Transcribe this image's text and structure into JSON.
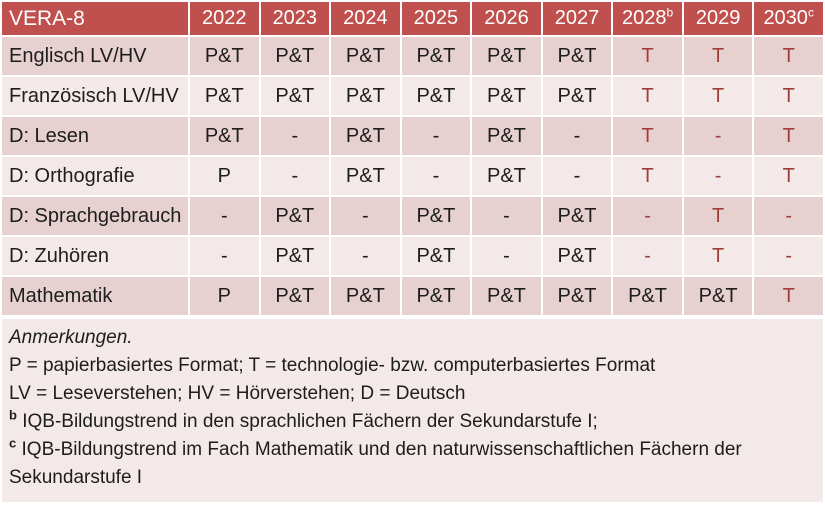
{
  "colors": {
    "header_bg": "#C0504D",
    "header_text": "#FFFFFF",
    "row_dark_bg": "#E7D1D0",
    "row_light_bg": "#F3E9E8",
    "notes_bg": "#F3E9E8",
    "body_text": "#1D1D1D",
    "tech_red_text": "#A03E3B",
    "grid_lines": "#FFFFFF"
  },
  "table": {
    "title": "VERA-8",
    "years": [
      {
        "label": "2022",
        "sup": ""
      },
      {
        "label": "2023",
        "sup": ""
      },
      {
        "label": "2024",
        "sup": ""
      },
      {
        "label": "2025",
        "sup": ""
      },
      {
        "label": "2026",
        "sup": ""
      },
      {
        "label": "2027",
        "sup": ""
      },
      {
        "label": "2028",
        "sup": "b"
      },
      {
        "label": "2029",
        "sup": ""
      },
      {
        "label": "2030",
        "sup": "c"
      }
    ],
    "rows": [
      {
        "label": "Englisch LV/HV",
        "cells": [
          "P&T",
          "P&T",
          "P&T",
          "P&T",
          "P&T",
          "P&T",
          "T",
          "T",
          "T"
        ]
      },
      {
        "label": "Französisch LV/HV",
        "cells": [
          "P&T",
          "P&T",
          "P&T",
          "P&T",
          "P&T",
          "P&T",
          "T",
          "T",
          "T"
        ]
      },
      {
        "label": "D: Lesen",
        "cells": [
          "P&T",
          "-",
          "P&T",
          "-",
          "P&T",
          "-",
          "T",
          "-",
          "T"
        ]
      },
      {
        "label": "D: Orthografie",
        "cells": [
          "P",
          "-",
          "P&T",
          "-",
          "P&T",
          "-",
          "T",
          "-",
          "T"
        ]
      },
      {
        "label": "D: Sprachgebrauch",
        "cells": [
          "-",
          "P&T",
          "-",
          "P&T",
          "-",
          "P&T",
          "-",
          "T",
          "-"
        ]
      },
      {
        "label": "D: Zuhören",
        "cells": [
          "-",
          "P&T",
          "-",
          "P&T",
          "-",
          "P&T",
          "-",
          "T",
          "-"
        ]
      },
      {
        "label": "Mathematik",
        "cells": [
          "P",
          "P&T",
          "P&T",
          "P&T",
          "P&T",
          "P&T",
          "P&T",
          "P&T",
          "T"
        ]
      }
    ]
  },
  "notes": {
    "heading": "Anmerkungen.",
    "formats": "P = papierbasiertes Format; T = technologie- bzw. computerbasiertes Format",
    "abbreviations": "LV = Leseverstehen; HV = Hörverstehen; D = Deutsch",
    "footnote_b_marker": "b",
    "footnote_b_text": "IQB-Bildungstrend in den sprachlichen Fächern der Sekundarstufe I;",
    "footnote_c_marker": "c",
    "footnote_c_text": "IQB-Bildungstrend im Fach Mathematik und den naturwissenschaftlichen Fächern der Sekundarstufe I"
  },
  "chart_data": {
    "type": "table",
    "title": "VERA-8",
    "columns": [
      "VERA-8",
      "2022",
      "2023",
      "2024",
      "2025",
      "2026",
      "2027",
      "2028",
      "2029",
      "2030"
    ],
    "rows": [
      [
        "Englisch LV/HV",
        "P&T",
        "P&T",
        "P&T",
        "P&T",
        "P&T",
        "P&T",
        "T",
        "T",
        "T"
      ],
      [
        "Französisch LV/HV",
        "P&T",
        "P&T",
        "P&T",
        "P&T",
        "P&T",
        "P&T",
        "T",
        "T",
        "T"
      ],
      [
        "D: Lesen",
        "P&T",
        "-",
        "P&T",
        "-",
        "P&T",
        "-",
        "T",
        "-",
        "T"
      ],
      [
        "D: Orthografie",
        "P",
        "-",
        "P&T",
        "-",
        "P&T",
        "-",
        "T",
        "-",
        "T"
      ],
      [
        "D: Sprachgebrauch",
        "-",
        "P&T",
        "-",
        "P&T",
        "-",
        "P&T",
        "-",
        "T",
        "-"
      ],
      [
        "D: Zuhören",
        "-",
        "P&T",
        "-",
        "P&T",
        "-",
        "P&T",
        "-",
        "T",
        "-"
      ],
      [
        "Mathematik",
        "P",
        "P&T",
        "P&T",
        "P&T",
        "P&T",
        "P&T",
        "P&T",
        "P&T",
        "T"
      ]
    ]
  }
}
